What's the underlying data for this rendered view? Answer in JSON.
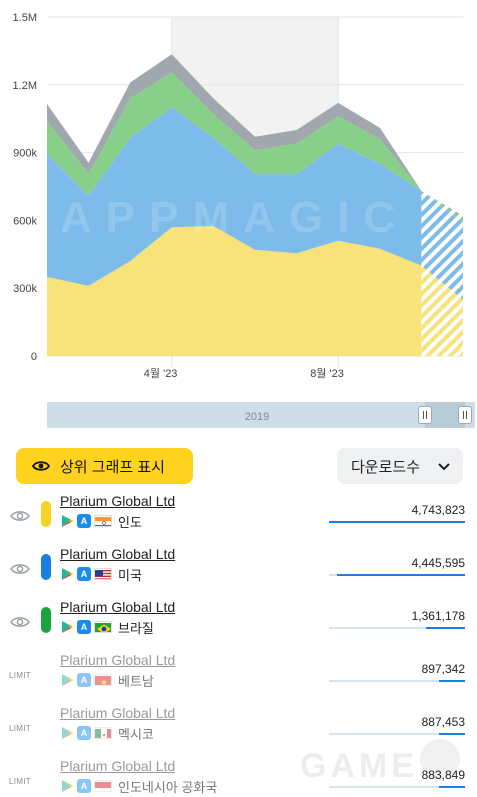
{
  "chart_data": {
    "type": "area",
    "x": [
      "2023-01",
      "2023-02",
      "2023-03",
      "2023-04",
      "2023-05",
      "2023-06",
      "2023-07",
      "2023-08",
      "2023-09",
      "2023-10",
      "2023-11"
    ],
    "categories": [
      "2023-01",
      "2023-02",
      "2023-03",
      "2023-04",
      "2023-05",
      "2023-06",
      "2023-07",
      "2023-08",
      "2023-09",
      "2023-10",
      "2023-11"
    ],
    "xticks": [
      "4월 '23",
      "8월 '23"
    ],
    "yticks": [
      "0",
      "300k",
      "600k",
      "900k",
      "1.2M",
      "1.5M"
    ],
    "ylim": [
      0,
      1500000
    ],
    "stacked": true,
    "series": [
      {
        "values": [
          350000,
          310000,
          420000,
          570000,
          575000,
          470000,
          455000,
          510000,
          475000,
          400000,
          0
        ],
        "color": "#f7e37a"
      },
      {
        "values": [
          545000,
          400000,
          545000,
          530000,
          390000,
          335000,
          350000,
          430000,
          375000,
          330000,
          0
        ],
        "color": "#7dbbea"
      },
      {
        "values": [
          145000,
          95000,
          175000,
          155000,
          105000,
          105000,
          135000,
          120000,
          110000,
          0,
          0
        ],
        "color": "#88cf8a"
      },
      {
        "values": [
          75000,
          50000,
          70000,
          80000,
          70000,
          60000,
          60000,
          60000,
          50000,
          0,
          0
        ],
        "color": "#a0a8ae"
      }
    ],
    "forecast_from": "2023-10",
    "forecast_end_values": [
      250000,
      340000,
      20000,
      10000
    ],
    "highlight_range": [
      "2023-04",
      "2023-08"
    ],
    "watermark": "APPMAGIC",
    "grid": true
  },
  "scrubber": {
    "year_label": "2019"
  },
  "controls": {
    "top_graph_label": "상위 그래프 표시",
    "metric_label": "다운로드수"
  },
  "rows": [
    {
      "lead": "eye",
      "color": "#f5d322",
      "publisher": "Plarium Global Ltd",
      "flag": "india",
      "country": "인도",
      "value": "4,743,823",
      "bar_fraction": 1.0,
      "faded": false
    },
    {
      "lead": "eye",
      "color": "#1a7fe0",
      "publisher": "Plarium Global Ltd",
      "flag": "usa",
      "country": "미국",
      "value": "4,445,595",
      "bar_fraction": 0.94,
      "faded": false
    },
    {
      "lead": "eye",
      "color": "#1aa53a",
      "publisher": "Plarium Global Ltd",
      "flag": "brazil",
      "country": "브라질",
      "value": "1,361,178",
      "bar_fraction": 0.29,
      "faded": false
    },
    {
      "lead": "LIMIT",
      "color": "",
      "publisher": "Plarium Global Ltd",
      "flag": "vietnam",
      "country": "베트남",
      "value": "897,342",
      "bar_fraction": 0.19,
      "faded": true
    },
    {
      "lead": "LIMIT",
      "color": "",
      "publisher": "Plarium Global Ltd",
      "flag": "mexico",
      "country": "멕시코",
      "value": "887,453",
      "bar_fraction": 0.19,
      "faded": true
    },
    {
      "lead": "LIMIT",
      "color": "",
      "publisher": "Plarium Global Ltd",
      "flag": "indonesia",
      "country": "인도네시아 공화국",
      "value": "883,849",
      "bar_fraction": 0.19,
      "faded": true
    }
  ],
  "corner_watermark": "GAME"
}
